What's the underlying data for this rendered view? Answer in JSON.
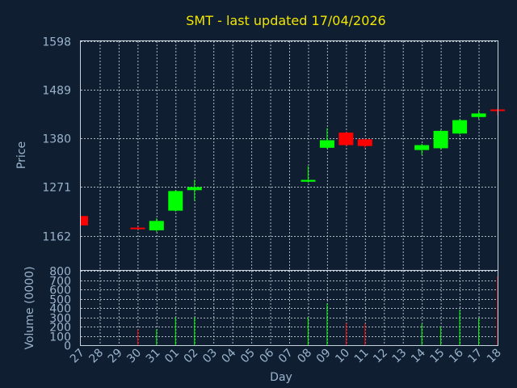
{
  "chart_data": {
    "type": "candlestick",
    "title": "SMT - last updated 17/04/2026",
    "xlabel": "Day",
    "ylabel": "Price",
    "volume_label": "Volume (0000)",
    "price_ticks": [
      "1598",
      "1489",
      "1380",
      "1271",
      "1162"
    ],
    "ylim": [
      1085,
      1598
    ],
    "volume_ticks": [
      "800",
      "700",
      "600",
      "500",
      "400",
      "300",
      "200",
      "100",
      "0"
    ],
    "volume_ylim": [
      0,
      800
    ],
    "grid": true,
    "colors": {
      "up": "#00ff00",
      "down": "#ff0000",
      "title": "#f2e600",
      "axis_text": "#9ab4cc",
      "background": "#0f1e30"
    },
    "x_labels": [
      "27",
      "28",
      "29",
      "30",
      "31",
      "01",
      "02",
      "03",
      "04",
      "05",
      "06",
      "07",
      "08",
      "09",
      "10",
      "11",
      "12",
      "13",
      "14",
      "15",
      "16",
      "17",
      "18"
    ],
    "candles": [
      {
        "x": 0,
        "open": 1206,
        "close": 1185,
        "high": 1206,
        "low": 1185,
        "volume": 0
      },
      {
        "x": 3,
        "open": 1180,
        "close": 1178,
        "high": 1183,
        "low": 1176,
        "volume": 170
      },
      {
        "x": 4,
        "open": 1174,
        "close": 1195,
        "high": 1201,
        "low": 1170,
        "volume": 170
      },
      {
        "x": 5,
        "open": 1218,
        "close": 1262,
        "high": 1264,
        "low": 1216,
        "volume": 300
      },
      {
        "x": 6,
        "open": 1264,
        "close": 1271,
        "high": 1287,
        "low": 1240,
        "volume": 300
      },
      {
        "x": 12,
        "open": 1283,
        "close": 1287,
        "high": 1318,
        "low": 1281,
        "volume": 300
      },
      {
        "x": 13,
        "open": 1359,
        "close": 1376,
        "high": 1403,
        "low": 1357,
        "volume": 450
      },
      {
        "x": 14,
        "open": 1393,
        "close": 1365,
        "high": 1395,
        "low": 1363,
        "volume": 240
      },
      {
        "x": 15,
        "open": 1378,
        "close": 1363,
        "high": 1380,
        "low": 1358,
        "volume": 230
      },
      {
        "x": 18,
        "open": 1354,
        "close": 1365,
        "high": 1368,
        "low": 1343,
        "volume": 230
      },
      {
        "x": 19,
        "open": 1358,
        "close": 1397,
        "high": 1399,
        "low": 1355,
        "volume": 200
      },
      {
        "x": 20,
        "open": 1391,
        "close": 1421,
        "high": 1424,
        "low": 1389,
        "volume": 380
      },
      {
        "x": 21,
        "open": 1428,
        "close": 1436,
        "high": 1443,
        "low": 1424,
        "volume": 290
      },
      {
        "x": 22,
        "open": 1445,
        "close": 1443,
        "high": 1447,
        "low": 1432,
        "volume": 740
      }
    ]
  }
}
